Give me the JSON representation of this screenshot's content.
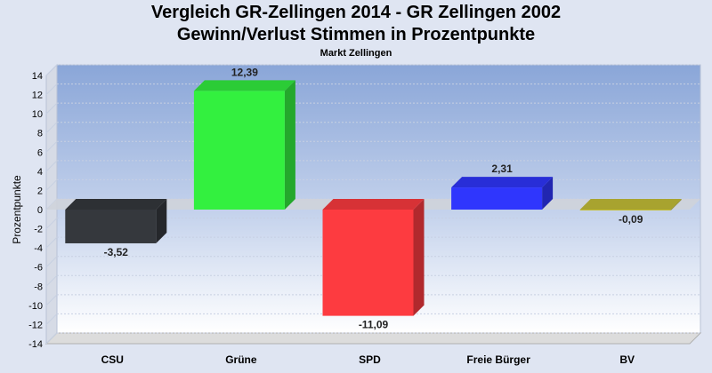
{
  "chart_data": {
    "type": "bar",
    "title": "Vergleich GR-Zellingen 2014 - GR Zellingen 2002",
    "subtitle": "Gewinn/Verlust Stimmen in Prozentpunkte",
    "caption": "Markt Zellingen",
    "ylabel": "Prozentpunkte",
    "xlabel": "",
    "ylim": [
      -14,
      14
    ],
    "yticks": [
      14,
      12,
      10,
      8,
      6,
      4,
      2,
      0,
      -2,
      -4,
      -6,
      -8,
      -10,
      -12,
      -14
    ],
    "categories": [
      "CSU",
      "Grüne",
      "SPD",
      "Freie Bürger",
      "BV"
    ],
    "values": [
      -3.52,
      12.39,
      -11.09,
      2.31,
      -0.09
    ],
    "value_labels": [
      "-3,52",
      "12,39",
      "-11,09",
      "2,31",
      "-0,09"
    ],
    "colors": [
      "#35383d",
      "#33f03f",
      "#fd3b40",
      "#2f36fd",
      "#c6c037"
    ],
    "grid": true,
    "legend": "none",
    "style": "3d"
  }
}
